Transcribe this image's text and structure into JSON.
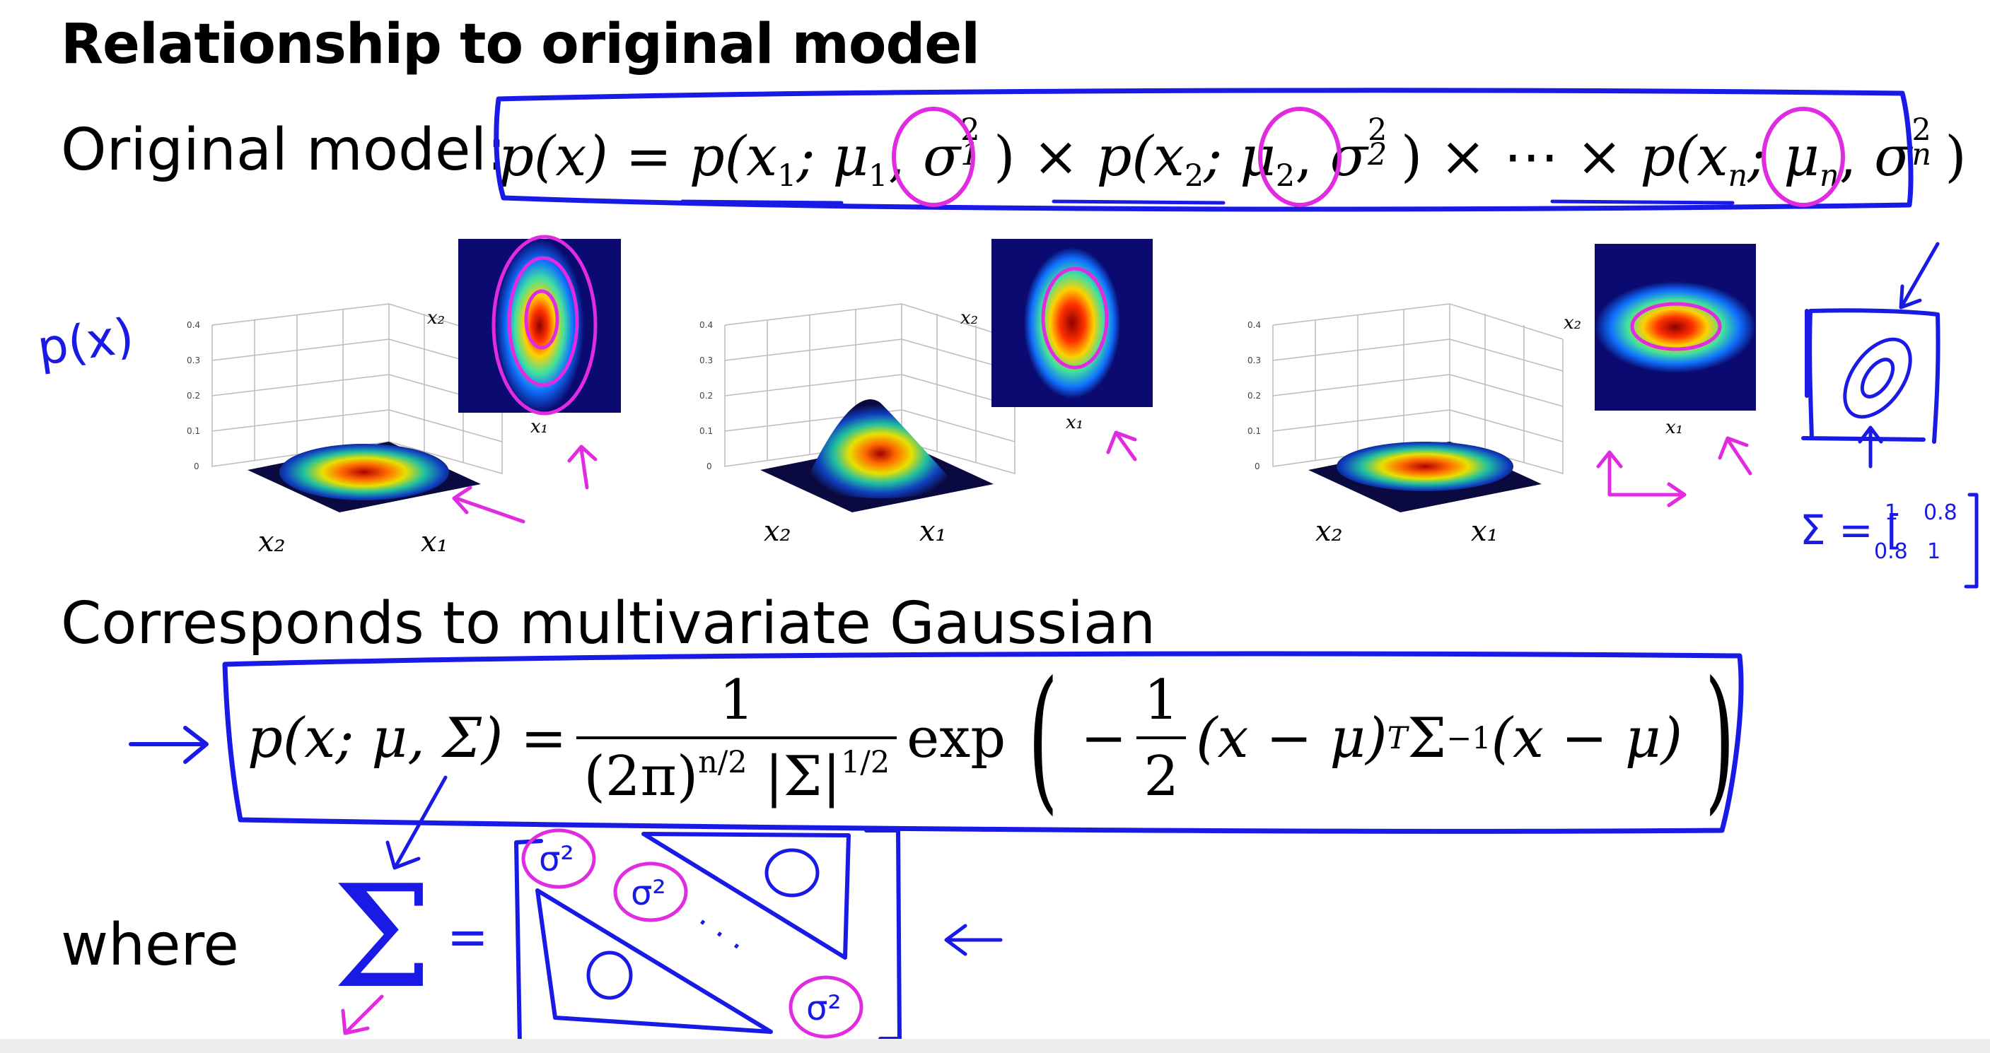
{
  "slide": {
    "title": "Relationship to original model",
    "original_label": "Original model:",
    "original_formula": {
      "lhs": "p(x) = ",
      "factor1_prefix": "p(x",
      "factor1_rest": "; μ",
      "factor1_sigma": "σ",
      "factor2_prefix": "p(x",
      "factor2_rest": "; μ",
      "factor2_sigma": "σ",
      "times": " × ",
      "dots": " ⋯ ",
      "factorn_prefix": "p(x",
      "factorn_rest": "; μ",
      "factorn_sigma": "σ",
      "sub1": "1",
      "sub2": "2",
      "subn": "n",
      "sq": "2"
    },
    "corresponds_label": "Corresponds to multivariate Gaussian",
    "mvg_formula": {
      "lhs": "p(x; μ, Σ) =",
      "num": "1",
      "den_base": "(2π)",
      "den_exp": "n/2",
      "den_det": "|Σ|",
      "den_det_exp": "1/2",
      "exp": "exp",
      "inner_minus": "−",
      "inner_half_num": "1",
      "inner_half_den": "2",
      "inner_rest": "(x − μ)",
      "T": "T",
      "sigma_inv": "Σ",
      "inv": "−1",
      "tail": "(x − μ)"
    },
    "where_label": "where"
  },
  "plots": [
    {
      "surface_label_x": "x₂",
      "surface_label_y": "x₁",
      "contour_label_y": "x₂",
      "contour_label_x": "x₁"
    },
    {
      "surface_label_x": "x₂",
      "surface_label_y": "x₁",
      "contour_label_y": "x₂",
      "contour_label_x": "x₁"
    },
    {
      "surface_label_x": "x₂",
      "surface_label_y": "x₁",
      "contour_label_y": "x₂",
      "contour_label_x": "x₁"
    }
  ],
  "axis_ticks": [
    "0.4",
    "0.3",
    "0.2",
    "0.1",
    "0"
  ],
  "annotations": {
    "px_label": "p(x)",
    "sigma_matrix_label": "Σ = [",
    "sigma_vals": [
      "1",
      "0.8",
      "0.8",
      "1"
    ],
    "big_sigma": "Σ",
    "equals": "=",
    "zero": "0",
    "sigma_sq": "σ²",
    "dots": "· · ·"
  },
  "colors": {
    "ink_blue": "#1a1ae6",
    "ink_magenta": "#e02be0",
    "text": "#000000"
  }
}
